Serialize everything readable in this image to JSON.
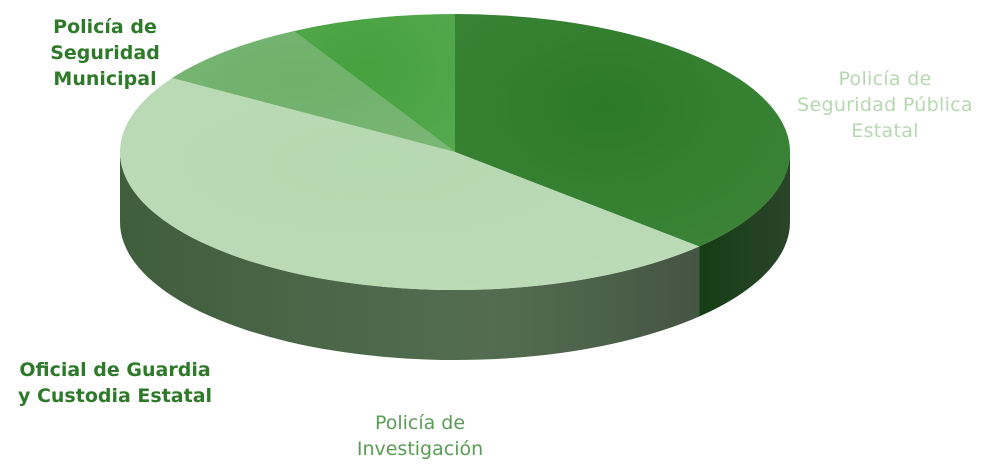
{
  "chart_data": {
    "type": "pie",
    "title": "",
    "slices": [
      {
        "label": "Policía de\nSeguridad\nMunicipal",
        "value": 37,
        "color": "#2c7a28",
        "side": "#1f5a1c",
        "bold": true
      },
      {
        "label": "Policía de\nSeguridad Pública\nEstatal",
        "value": 47,
        "color": "#b6d8b1",
        "side": "#3f5e3c",
        "bold": false
      },
      {
        "label": "Policía de\nInvestigación",
        "value": 8,
        "color": "#6fb06a",
        "side": "#4d7d49",
        "bold": false
      },
      {
        "label": "Oficial de Guardia\ny Custodia Estatal",
        "value": 8,
        "color": "#45a13e",
        "side": "#2f7029",
        "bold": true
      }
    ],
    "start_angle_deg": -90,
    "style": "3d"
  }
}
